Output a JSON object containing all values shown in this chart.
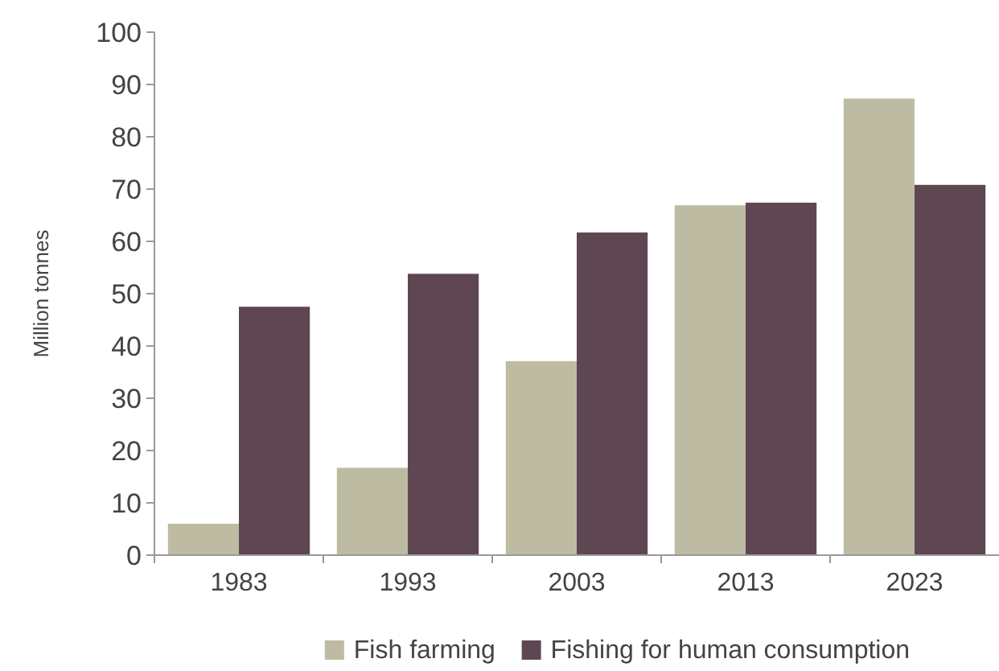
{
  "chart_data": {
    "type": "bar",
    "ylabel": "Million tonnes",
    "categories": [
      "1983",
      "1993",
      "2003",
      "2013",
      "2023"
    ],
    "series": [
      {
        "name": "Fish farming",
        "color": "#bebba3",
        "values": [
          6,
          16.7,
          37.1,
          66.9,
          87.3
        ]
      },
      {
        "name": "Fishing for human consumption",
        "color": "#5e4753",
        "values": [
          47.5,
          53.8,
          61.7,
          67.4,
          70.8
        ]
      }
    ],
    "ylim": [
      0,
      100
    ],
    "yticks": [
      0,
      10,
      20,
      30,
      40,
      50,
      60,
      70,
      80,
      90,
      100
    ],
    "grid": false,
    "legend": "bottom"
  }
}
